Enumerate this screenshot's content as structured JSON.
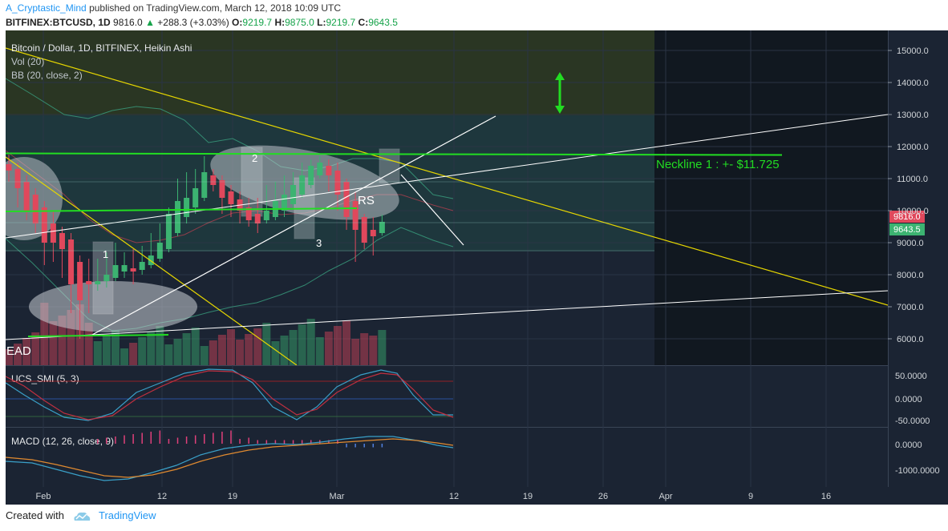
{
  "header": {
    "author": "A_Cryptastic_Mind",
    "published": "published on TradingView.com, March 12, 2018 10:09 UTC",
    "symbol": "BITFINEX:BTCUSD, 1D",
    "last": "9816.0",
    "change": "+288.3 (+3.03%)",
    "open_label": "O:",
    "open": "9219.7",
    "high_label": "H:",
    "high": "9875.0",
    "low_label": "L:",
    "low": "9219.7",
    "close_label": "C:",
    "close": "9643.5"
  },
  "legend": {
    "title": "Bitcoin / Dollar, 1D, BITFINEX, Heikin Ashi",
    "vol": "Vol (20)",
    "bb": "BB (20, close, 2)",
    "smi": "UCS_SMI (5, 3)",
    "macd": "MACD (12, 26, close, 9)"
  },
  "annotations": {
    "neckline": "Neckline 1 : +- $11.725",
    "rs": "RS",
    "n1": "1",
    "n2": "2",
    "n3": "3",
    "lead": "EAD"
  },
  "price_tags": {
    "last": "9816.0",
    "close": "9643.5"
  },
  "footer": {
    "created_with": "Created with",
    "brand": "TradingView"
  },
  "colors": {
    "bg": "#1b2433",
    "up": "#3cb371",
    "down": "#e0485c",
    "neckline": "#22dd22",
    "trend_yellow": "#e6d600",
    "trend_white": "#ffffff"
  },
  "chart_data": {
    "type": "candlestick",
    "style": "Heikin Ashi",
    "title": "Bitcoin / Dollar, 1D, BITFINEX, Heikin Ashi",
    "price_axis": {
      "ticks": [
        "15000.0",
        "14000.0",
        "13000.0",
        "12000.0",
        "11000.0",
        "10000.0",
        "9000.0",
        "8000.0",
        "7000.0",
        "6000.0"
      ],
      "ylim": [
        5200,
        15450
      ]
    },
    "time_axis": {
      "ticks": [
        "Feb",
        "12",
        "19",
        "Mar",
        "12",
        "19",
        "26",
        "Apr",
        "9",
        "16"
      ]
    },
    "candles": [
      {
        "d": "Jan 29",
        "o": 11450,
        "c": 11250,
        "h": 11750,
        "l": 10900
      },
      {
        "d": "Jan 30",
        "o": 11300,
        "c": 10700,
        "h": 11500,
        "l": 10100
      },
      {
        "d": "Jan 31",
        "o": 10900,
        "c": 10000,
        "h": 11100,
        "l": 9700
      },
      {
        "d": "Feb 1",
        "o": 10500,
        "c": 9600,
        "h": 10700,
        "l": 9300
      },
      {
        "d": "Feb 2",
        "o": 10100,
        "c": 9000,
        "h": 10300,
        "l": 8300
      },
      {
        "d": "Feb 3",
        "o": 9600,
        "c": 9000,
        "h": 10000,
        "l": 8400
      },
      {
        "d": "Feb 4",
        "o": 9300,
        "c": 8800,
        "h": 9500,
        "l": 7900
      },
      {
        "d": "Feb 5",
        "o": 9100,
        "c": 7700,
        "h": 9300,
        "l": 6800
      },
      {
        "d": "Feb 6",
        "o": 8400,
        "c": 7200,
        "h": 8600,
        "l": 6000
      },
      {
        "d": "Feb 7",
        "o": 7800,
        "c": 7700,
        "h": 8500,
        "l": 6800
      },
      {
        "d": "Feb 8",
        "o": 7700,
        "c": 7800,
        "h": 8500,
        "l": 7500
      },
      {
        "d": "Feb 9",
        "o": 7800,
        "c": 8000,
        "h": 8700,
        "l": 7600
      },
      {
        "d": "Feb 10",
        "o": 7900,
        "c": 8300,
        "h": 9000,
        "l": 7800
      },
      {
        "d": "Feb 11",
        "o": 8100,
        "c": 8300,
        "h": 8700,
        "l": 7900
      },
      {
        "d": "Feb 12",
        "o": 8200,
        "c": 8100,
        "h": 8800,
        "l": 7700
      },
      {
        "d": "Feb 13",
        "o": 8150,
        "c": 8400,
        "h": 8900,
        "l": 8000
      },
      {
        "d": "Feb 14",
        "o": 8300,
        "c": 8600,
        "h": 9300,
        "l": 8200
      },
      {
        "d": "Feb 15",
        "o": 8500,
        "c": 9000,
        "h": 9600,
        "l": 8400
      },
      {
        "d": "Feb 16",
        "o": 8800,
        "c": 9900,
        "h": 10100,
        "l": 8700
      },
      {
        "d": "Feb 17",
        "o": 9300,
        "c": 10300,
        "h": 11000,
        "l": 9200
      },
      {
        "d": "Feb 18",
        "o": 9800,
        "c": 10400,
        "h": 11200,
        "l": 9600
      },
      {
        "d": "Feb 19",
        "o": 10100,
        "c": 10700,
        "h": 11300,
        "l": 9900
      },
      {
        "d": "Feb 20",
        "o": 10400,
        "c": 11200,
        "h": 11700,
        "l": 10300
      },
      {
        "d": "Feb 21",
        "o": 11100,
        "c": 10800,
        "h": 11300,
        "l": 10600
      },
      {
        "d": "Feb 22",
        "o": 10950,
        "c": 10400,
        "h": 11100,
        "l": 9900
      },
      {
        "d": "Feb 23",
        "o": 10600,
        "c": 10200,
        "h": 10800,
        "l": 9800
      },
      {
        "d": "Feb 24",
        "o": 10350,
        "c": 10000,
        "h": 10600,
        "l": 9600
      },
      {
        "d": "Feb 25",
        "o": 10100,
        "c": 9700,
        "h": 10400,
        "l": 9500
      },
      {
        "d": "Feb 26",
        "o": 9900,
        "c": 9600,
        "h": 10400,
        "l": 9300
      },
      {
        "d": "Feb 27",
        "o": 9700,
        "c": 10000,
        "h": 10800,
        "l": 9600
      },
      {
        "d": "Feb 28",
        "o": 9800,
        "c": 10300,
        "h": 10900,
        "l": 9700
      },
      {
        "d": "Mar 1",
        "o": 10000,
        "c": 10500,
        "h": 11100,
        "l": 9800
      },
      {
        "d": "Mar 2",
        "o": 10200,
        "c": 10800,
        "h": 11200,
        "l": 10100
      },
      {
        "d": "Mar 3",
        "o": 10500,
        "c": 11100,
        "h": 11500,
        "l": 10400
      },
      {
        "d": "Mar 4",
        "o": 10800,
        "c": 11400,
        "h": 11600,
        "l": 10700
      },
      {
        "d": "Mar 5",
        "o": 11100,
        "c": 11500,
        "h": 11700,
        "l": 11000
      },
      {
        "d": "Mar 6",
        "o": 11400,
        "c": 11100,
        "h": 11600,
        "l": 10600
      },
      {
        "d": "Mar 7",
        "o": 11250,
        "c": 10500,
        "h": 11500,
        "l": 10000
      },
      {
        "d": "Mar 8",
        "o": 10900,
        "c": 9800,
        "h": 11000,
        "l": 9400
      },
      {
        "d": "Mar 9",
        "o": 10300,
        "c": 9400,
        "h": 10600,
        "l": 8400
      },
      {
        "d": "Mar 10",
        "o": 9800,
        "c": 9000,
        "h": 9900,
        "l": 8800
      },
      {
        "d": "Mar 11",
        "o": 9400,
        "c": 9200,
        "h": 9800,
        "l": 8600
      },
      {
        "d": "Mar 12",
        "o": 9300,
        "c": 9650,
        "h": 9875,
        "l": 9220
      }
    ],
    "neckline_price": 11725,
    "smi": {
      "ylim": [
        -50,
        50
      ],
      "ticks": [
        "50.0000",
        "0.0000",
        "-50.0000"
      ]
    },
    "macd": {
      "ticks": [
        "0.0000",
        "-1000.0000"
      ]
    }
  }
}
